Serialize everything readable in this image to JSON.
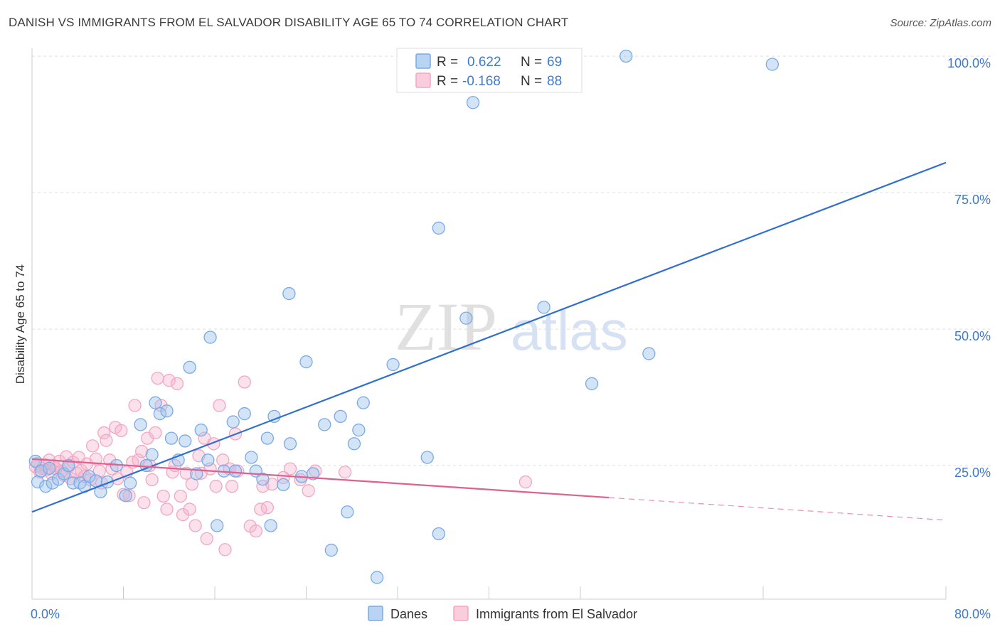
{
  "title": "DANISH VS IMMIGRANTS FROM EL SALVADOR DISABILITY AGE 65 TO 74 CORRELATION CHART",
  "source": "Source: ZipAtlas.com",
  "watermark": {
    "zip": "ZIP",
    "atlas": "atlas"
  },
  "chart_data": {
    "type": "scatter",
    "ylabel": "Disability Age 65 to 74",
    "xlim": [
      0,
      80
    ],
    "ylim": [
      0,
      103
    ],
    "x_tick_labels": [
      {
        "value": 0,
        "label": "0.0%"
      },
      {
        "value": 80,
        "label": "80.0%"
      }
    ],
    "y_tick_labels": [
      {
        "value": 25,
        "label": "25.0%"
      },
      {
        "value": 50,
        "label": "50.0%"
      },
      {
        "value": 75,
        "label": "75.0%"
      },
      {
        "value": 100,
        "label": "100.0%"
      }
    ],
    "x_minor_ticks": [
      0,
      8,
      16,
      24,
      32,
      40,
      48,
      64,
      80
    ],
    "grid": true,
    "legend_top": [
      {
        "r_label": "R =",
        "r_value": "0.622",
        "n_label": "N =",
        "n_value": "69"
      },
      {
        "r_label": "R =",
        "r_value": "-0.168",
        "n_label": "N =",
        "n_value": "88"
      }
    ],
    "legend_placement": "top-center",
    "series": [
      {
        "name": "Danes",
        "color": "#7aaae6",
        "line_color": "#2f6fcf",
        "trend": {
          "x0": 0,
          "y0": 16.5,
          "x1": 80,
          "y1": 80.5,
          "dashed_from": null
        },
        "points": [
          [
            0.3,
            25.8
          ],
          [
            0.5,
            22.0
          ],
          [
            0.8,
            24.0
          ],
          [
            1.2,
            21.2
          ],
          [
            1.5,
            24.5
          ],
          [
            1.8,
            21.8
          ],
          [
            2.3,
            22.5
          ],
          [
            2.8,
            23.5
          ],
          [
            3.2,
            25.0
          ],
          [
            3.6,
            21.8
          ],
          [
            4.2,
            21.8
          ],
          [
            4.6,
            21.2
          ],
          [
            5.0,
            23.0
          ],
          [
            5.6,
            22.2
          ],
          [
            6.0,
            20.2
          ],
          [
            6.6,
            22.0
          ],
          [
            7.4,
            25.0
          ],
          [
            8.2,
            19.5
          ],
          [
            8.6,
            21.8
          ],
          [
            9.5,
            32.5
          ],
          [
            10.0,
            25.0
          ],
          [
            10.5,
            27.0
          ],
          [
            10.8,
            36.5
          ],
          [
            11.2,
            34.5
          ],
          [
            11.8,
            35.0
          ],
          [
            12.2,
            30.0
          ],
          [
            12.8,
            26.0
          ],
          [
            13.4,
            29.5
          ],
          [
            13.8,
            43.0
          ],
          [
            14.4,
            23.5
          ],
          [
            14.8,
            31.5
          ],
          [
            15.4,
            26.0
          ],
          [
            15.6,
            48.5
          ],
          [
            16.2,
            14.0
          ],
          [
            16.8,
            24.0
          ],
          [
            17.6,
            33.0
          ],
          [
            17.8,
            24.0
          ],
          [
            18.6,
            34.5
          ],
          [
            19.2,
            26.5
          ],
          [
            19.6,
            24.0
          ],
          [
            20.2,
            22.5
          ],
          [
            20.6,
            30.0
          ],
          [
            20.9,
            14.0
          ],
          [
            21.2,
            34.0
          ],
          [
            22.0,
            21.5
          ],
          [
            22.5,
            56.5
          ],
          [
            22.6,
            29.0
          ],
          [
            23.6,
            23.0
          ],
          [
            24.0,
            44.0
          ],
          [
            24.6,
            23.5
          ],
          [
            25.6,
            32.5
          ],
          [
            26.2,
            9.5
          ],
          [
            27.0,
            34.0
          ],
          [
            27.6,
            16.5
          ],
          [
            28.2,
            29.0
          ],
          [
            28.6,
            31.5
          ],
          [
            29.0,
            36.5
          ],
          [
            30.2,
            4.5
          ],
          [
            31.6,
            43.5
          ],
          [
            34.6,
            26.5
          ],
          [
            35.6,
            12.5
          ],
          [
            35.6,
            68.5
          ],
          [
            38.0,
            52.0
          ],
          [
            38.6,
            91.5
          ],
          [
            44.8,
            54.0
          ],
          [
            49.0,
            40.0
          ],
          [
            52.0,
            100.0
          ],
          [
            54.0,
            45.5
          ],
          [
            64.8,
            98.5
          ]
        ]
      },
      {
        "name": "Immigrants from El Salvador",
        "color": "#f3a6c0",
        "line_color": "#e0608f",
        "trend": {
          "x0": 0,
          "y0": 26.2,
          "x1": 80,
          "y1": 15.0,
          "dashed_from": 50.5
        },
        "points": [
          [
            0.3,
            24.8
          ],
          [
            0.5,
            25.4
          ],
          [
            0.7,
            23.8
          ],
          [
            0.9,
            24.5
          ],
          [
            1.1,
            25.2
          ],
          [
            1.3,
            24.2
          ],
          [
            1.5,
            26.0
          ],
          [
            1.7,
            23.5
          ],
          [
            1.9,
            25.0
          ],
          [
            2.1,
            24.4
          ],
          [
            2.4,
            25.8
          ],
          [
            2.6,
            24.0
          ],
          [
            2.8,
            23.2
          ],
          [
            3.0,
            26.6
          ],
          [
            3.2,
            24.8
          ],
          [
            3.4,
            22.6
          ],
          [
            3.6,
            25.6
          ],
          [
            3.9,
            23.6
          ],
          [
            4.1,
            26.5
          ],
          [
            4.3,
            24.1
          ],
          [
            4.6,
            23.0
          ],
          [
            4.8,
            25.3
          ],
          [
            5.1,
            22.4
          ],
          [
            5.3,
            28.6
          ],
          [
            5.6,
            26.2
          ],
          [
            5.9,
            24.0
          ],
          [
            6.1,
            21.8
          ],
          [
            6.3,
            31.0
          ],
          [
            6.5,
            29.6
          ],
          [
            6.8,
            26.0
          ],
          [
            7.0,
            24.4
          ],
          [
            7.3,
            32.0
          ],
          [
            7.5,
            22.6
          ],
          [
            7.8,
            31.4
          ],
          [
            8.0,
            19.7
          ],
          [
            8.3,
            23.8
          ],
          [
            8.5,
            19.5
          ],
          [
            8.8,
            25.6
          ],
          [
            9.0,
            36.0
          ],
          [
            9.3,
            26.0
          ],
          [
            9.6,
            27.6
          ],
          [
            9.8,
            18.2
          ],
          [
            10.1,
            30.0
          ],
          [
            10.3,
            25.0
          ],
          [
            10.5,
            22.4
          ],
          [
            10.8,
            31.0
          ],
          [
            11.0,
            41.0
          ],
          [
            11.3,
            36.0
          ],
          [
            11.5,
            19.4
          ],
          [
            11.8,
            17.0
          ],
          [
            12.0,
            40.6
          ],
          [
            12.3,
            23.8
          ],
          [
            12.5,
            25.0
          ],
          [
            12.7,
            40.0
          ],
          [
            13.0,
            19.4
          ],
          [
            13.2,
            16.0
          ],
          [
            13.5,
            23.6
          ],
          [
            13.8,
            17.0
          ],
          [
            14.0,
            21.6
          ],
          [
            14.3,
            14.0
          ],
          [
            14.6,
            26.8
          ],
          [
            14.8,
            23.6
          ],
          [
            15.1,
            30.0
          ],
          [
            15.3,
            11.6
          ],
          [
            15.6,
            24.4
          ],
          [
            15.9,
            29.0
          ],
          [
            16.1,
            21.2
          ],
          [
            16.4,
            36.0
          ],
          [
            16.7,
            26.0
          ],
          [
            16.9,
            9.6
          ],
          [
            17.3,
            24.4
          ],
          [
            17.5,
            21.2
          ],
          [
            17.8,
            30.8
          ],
          [
            18.0,
            24.0
          ],
          [
            18.6,
            40.3
          ],
          [
            19.1,
            13.9
          ],
          [
            19.6,
            13.0
          ],
          [
            20.0,
            17.0
          ],
          [
            20.2,
            21.2
          ],
          [
            20.6,
            17.3
          ],
          [
            21.0,
            21.6
          ],
          [
            22.0,
            22.8
          ],
          [
            22.6,
            24.4
          ],
          [
            23.5,
            22.4
          ],
          [
            24.2,
            20.4
          ],
          [
            24.8,
            24.0
          ],
          [
            27.4,
            23.8
          ],
          [
            43.2,
            22.0
          ]
        ]
      }
    ]
  },
  "bottom_legend": [
    {
      "label": "Danes"
    },
    {
      "label": "Immigrants from El Salvador"
    }
  ]
}
